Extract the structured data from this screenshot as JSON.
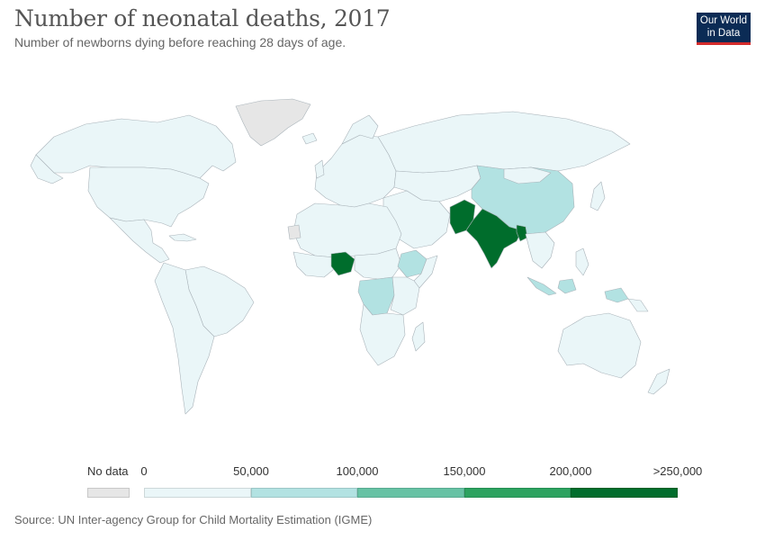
{
  "header": {
    "title": "Number of neonatal deaths, 2017",
    "subtitle": "Number of newborns dying before reaching 28 days of age."
  },
  "logo": {
    "line1": "Our World",
    "line2": "in Data"
  },
  "legend": {
    "no_data_label": "No data",
    "no_data_color": "#e6e6e6",
    "tick_labels": [
      "0",
      "50,000",
      "100,000",
      "150,000",
      "200,000",
      ">250,000"
    ],
    "bin_colors": [
      "#eaf6f8",
      "#b2e2e2",
      "#66c2a4",
      "#2ca25f",
      "#006d2c"
    ]
  },
  "source": "Source: UN Inter-agency Group for Child Mortality Estimation (IGME)",
  "map_colors": {
    "background": "#ffffff",
    "border": "#aab4ba",
    "ocean": "#ffffff"
  }
}
